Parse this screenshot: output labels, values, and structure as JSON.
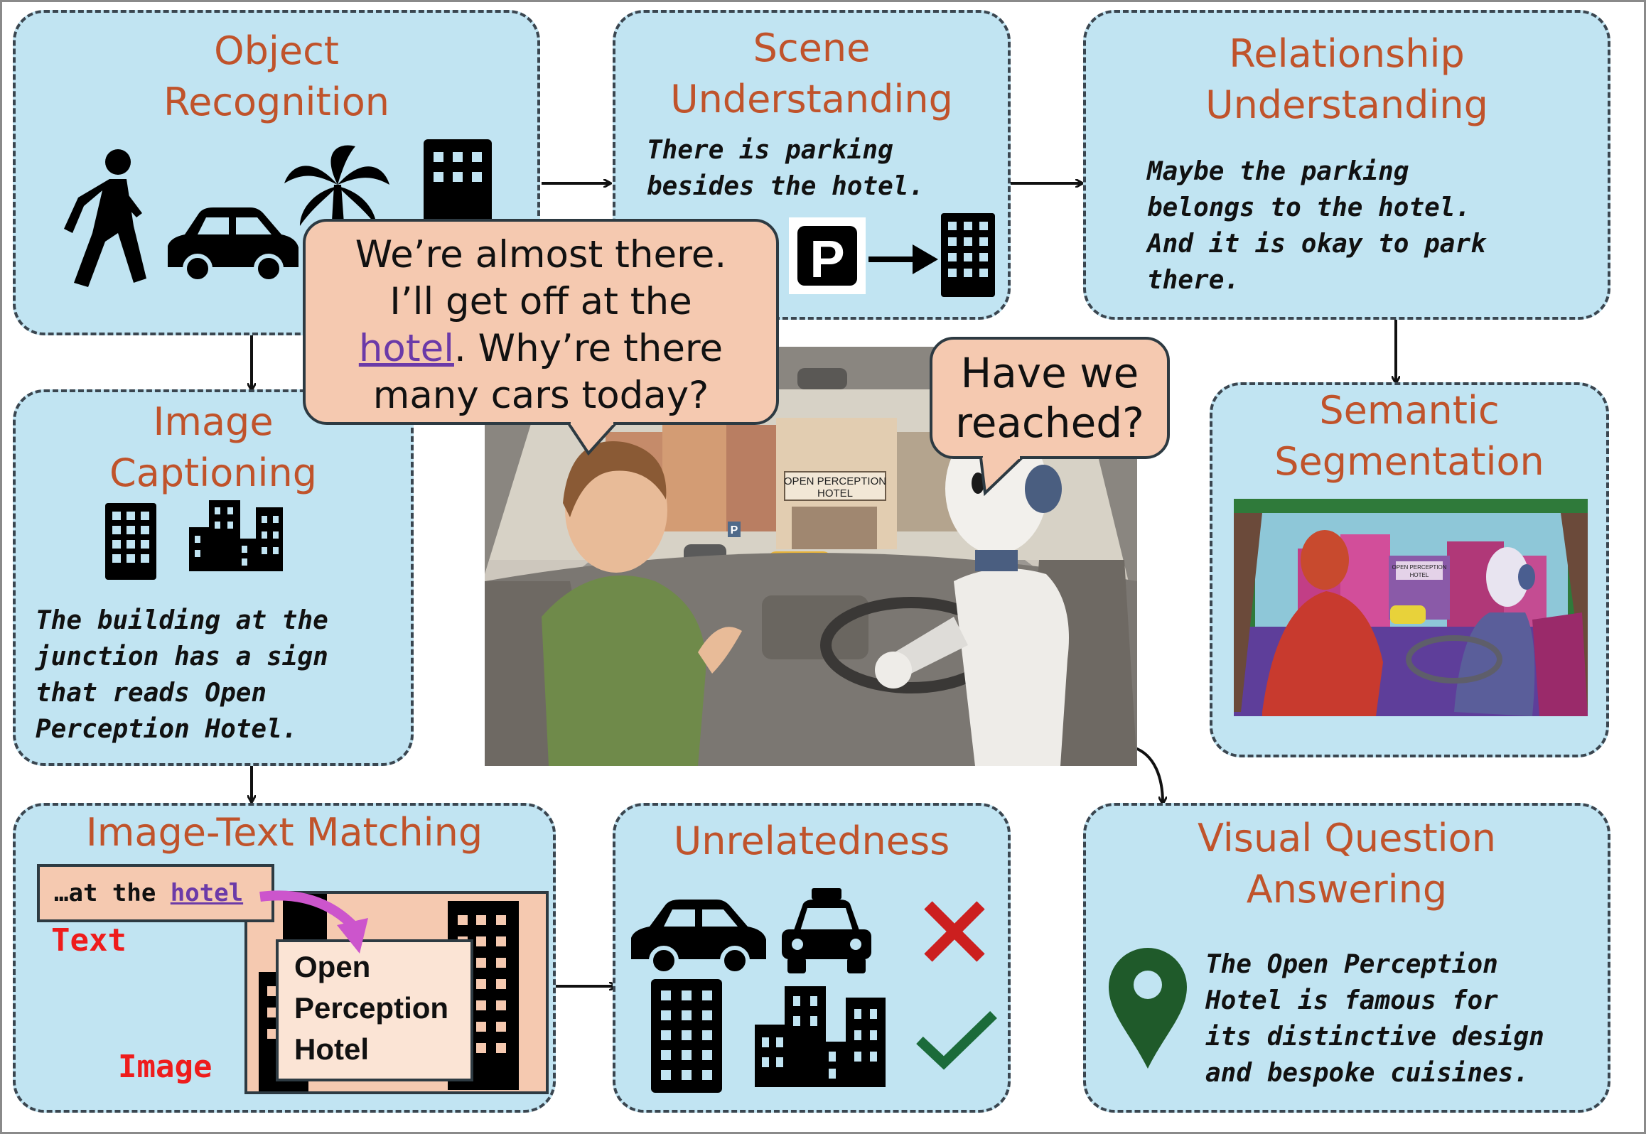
{
  "panels": {
    "object_recognition": {
      "title": [
        "Object",
        "Recognition"
      ]
    },
    "scene_understanding": {
      "title": [
        "Scene",
        "Understanding"
      ],
      "text": [
        "There is parking",
        "besides the hotel."
      ],
      "parking_sign": "P"
    },
    "relationship_understanding": {
      "title": [
        "Relationship",
        "Understanding"
      ],
      "text": [
        "Maybe the parking",
        "belongs to the hotel.",
        "And it is okay to park",
        "there."
      ]
    },
    "image_captioning": {
      "title": [
        "Image",
        "Captioning"
      ],
      "text": [
        "The building at the",
        "junction has a sign",
        "that reads Open",
        "Perception Hotel."
      ]
    },
    "semantic_segmentation": {
      "title": [
        "Semantic",
        "Segmentation"
      ],
      "sign": [
        "OPEN PERCEPTION",
        "HOTEL"
      ]
    },
    "image_text_matching": {
      "title": "Image-Text Matching",
      "snippet_prefix": "…at the ",
      "snippet_link": "hotel",
      "text_label": "Text",
      "image_label": "Image",
      "image_sign": [
        "Open",
        "Perception",
        "Hotel"
      ]
    },
    "unrelatedness": {
      "title": "Unrelatedness"
    },
    "vqa": {
      "title": [
        "Visual Question",
        "Answering"
      ],
      "text": [
        "The Open Perception",
        "Hotel is famous for",
        "its distinctive design",
        "and bespoke cuisines."
      ]
    }
  },
  "bubbles": {
    "human": {
      "line1": "We’re almost there.",
      "line2": "I’ll get off at the",
      "link": "hotel",
      "line3_rest": ". Why’re there",
      "line4": "many cars today?"
    },
    "robot": {
      "line1": "Have we",
      "line2": "reached?"
    }
  },
  "scene": {
    "sign": [
      "OPEN PERCEPTION",
      "HOTEL"
    ],
    "parking": "P"
  },
  "colors": {
    "panel_fill": "#c1e4f2",
    "title": "#c0532b",
    "bubble": "#f5c9b0",
    "link": "#6b3aa8",
    "cross": "#cc1f1f",
    "check": "#1b6b3a",
    "pin": "#1f5a2a"
  }
}
